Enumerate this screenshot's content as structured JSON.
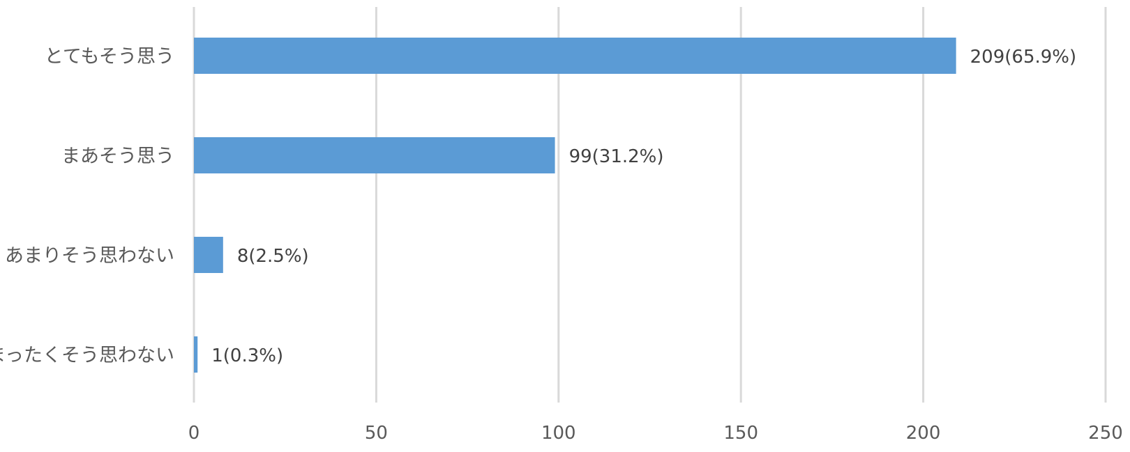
{
  "chart_data": {
    "type": "bar",
    "orientation": "horizontal",
    "title": "",
    "xlabel": "",
    "ylabel": "",
    "categories": [
      "とてもそう思う",
      "まあそう思う",
      "あまりそう思わない",
      "まったくそう思わない"
    ],
    "values": [
      209,
      99,
      8,
      1
    ],
    "data_labels": [
      "209(65.9%)",
      "99(31.2%)",
      "8(2.5%)",
      "1(0.3%)"
    ],
    "xlim": [
      0,
      250
    ],
    "x_ticks": [
      0,
      50,
      100,
      150,
      200,
      250
    ],
    "x_tick_labels": [
      "0",
      "50",
      "100",
      "150",
      "200",
      "250"
    ],
    "grid": true,
    "legend": "none",
    "bar_color": "#5b9bd5",
    "grid_color": "#d9d9d9"
  }
}
